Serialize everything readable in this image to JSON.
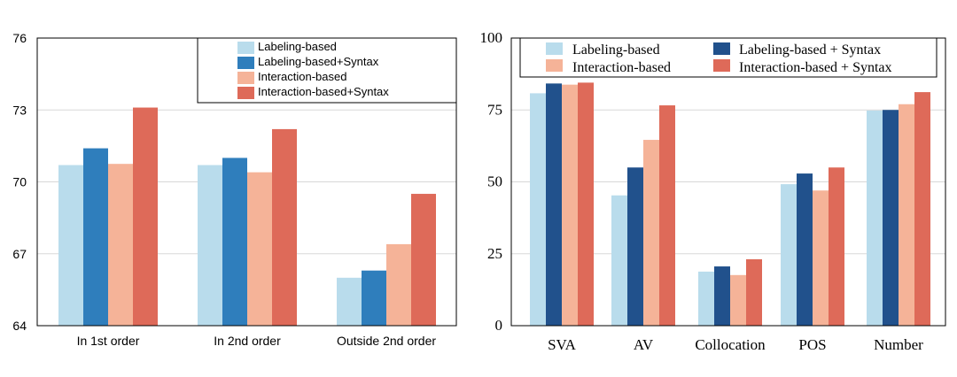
{
  "chart_data": [
    {
      "type": "bar",
      "title": "",
      "xlabel": "",
      "ylabel": "",
      "ylim": [
        64,
        76
      ],
      "yticks": [
        "64",
        "67",
        "70",
        "73",
        "76"
      ],
      "grid": true,
      "legend_position": "top-right",
      "categories": [
        "In 1st order",
        "In 2nd order",
        "Outside 2nd order"
      ],
      "series": [
        {
          "name": "Labeling-based",
          "color": "#b9dcec",
          "values": [
            70.7,
            70.7,
            66.0
          ]
        },
        {
          "name": "Labeling-based+Syntax",
          "color": "#2f7ebc",
          "values": [
            71.4,
            71.0,
            66.3
          ]
        },
        {
          "name": "Interaction-based",
          "color": "#f5b398",
          "values": [
            70.75,
            70.4,
            67.4
          ]
        },
        {
          "name": "Interaction-based+Syntax",
          "color": "#de6a59",
          "values": [
            73.1,
            72.2,
            69.5
          ]
        }
      ]
    },
    {
      "type": "bar",
      "title": "",
      "xlabel": "",
      "ylabel": "",
      "ylim": [
        0,
        100
      ],
      "yticks": [
        "0",
        "25",
        "50",
        "75",
        "100"
      ],
      "grid": true,
      "legend_position": "top",
      "categories": [
        "SVA",
        "AV",
        "Collocation",
        "POS",
        "Number"
      ],
      "series": [
        {
          "name": "Labeling-based",
          "color": "#b9dcec",
          "values": [
            80.8,
            45.3,
            18.8,
            49.2,
            74.8
          ]
        },
        {
          "name": "Labeling-based + Syntax",
          "color": "#21518c",
          "values": [
            84.2,
            55.0,
            20.6,
            52.9,
            75.0
          ]
        },
        {
          "name": "Interaction-based",
          "color": "#f5b398",
          "values": [
            83.8,
            64.6,
            17.6,
            47.0,
            77.0
          ]
        },
        {
          "name": "Interaction-based + Syntax",
          "color": "#de6a59",
          "values": [
            84.5,
            76.6,
            23.1,
            55.0,
            81.2
          ]
        }
      ]
    }
  ]
}
